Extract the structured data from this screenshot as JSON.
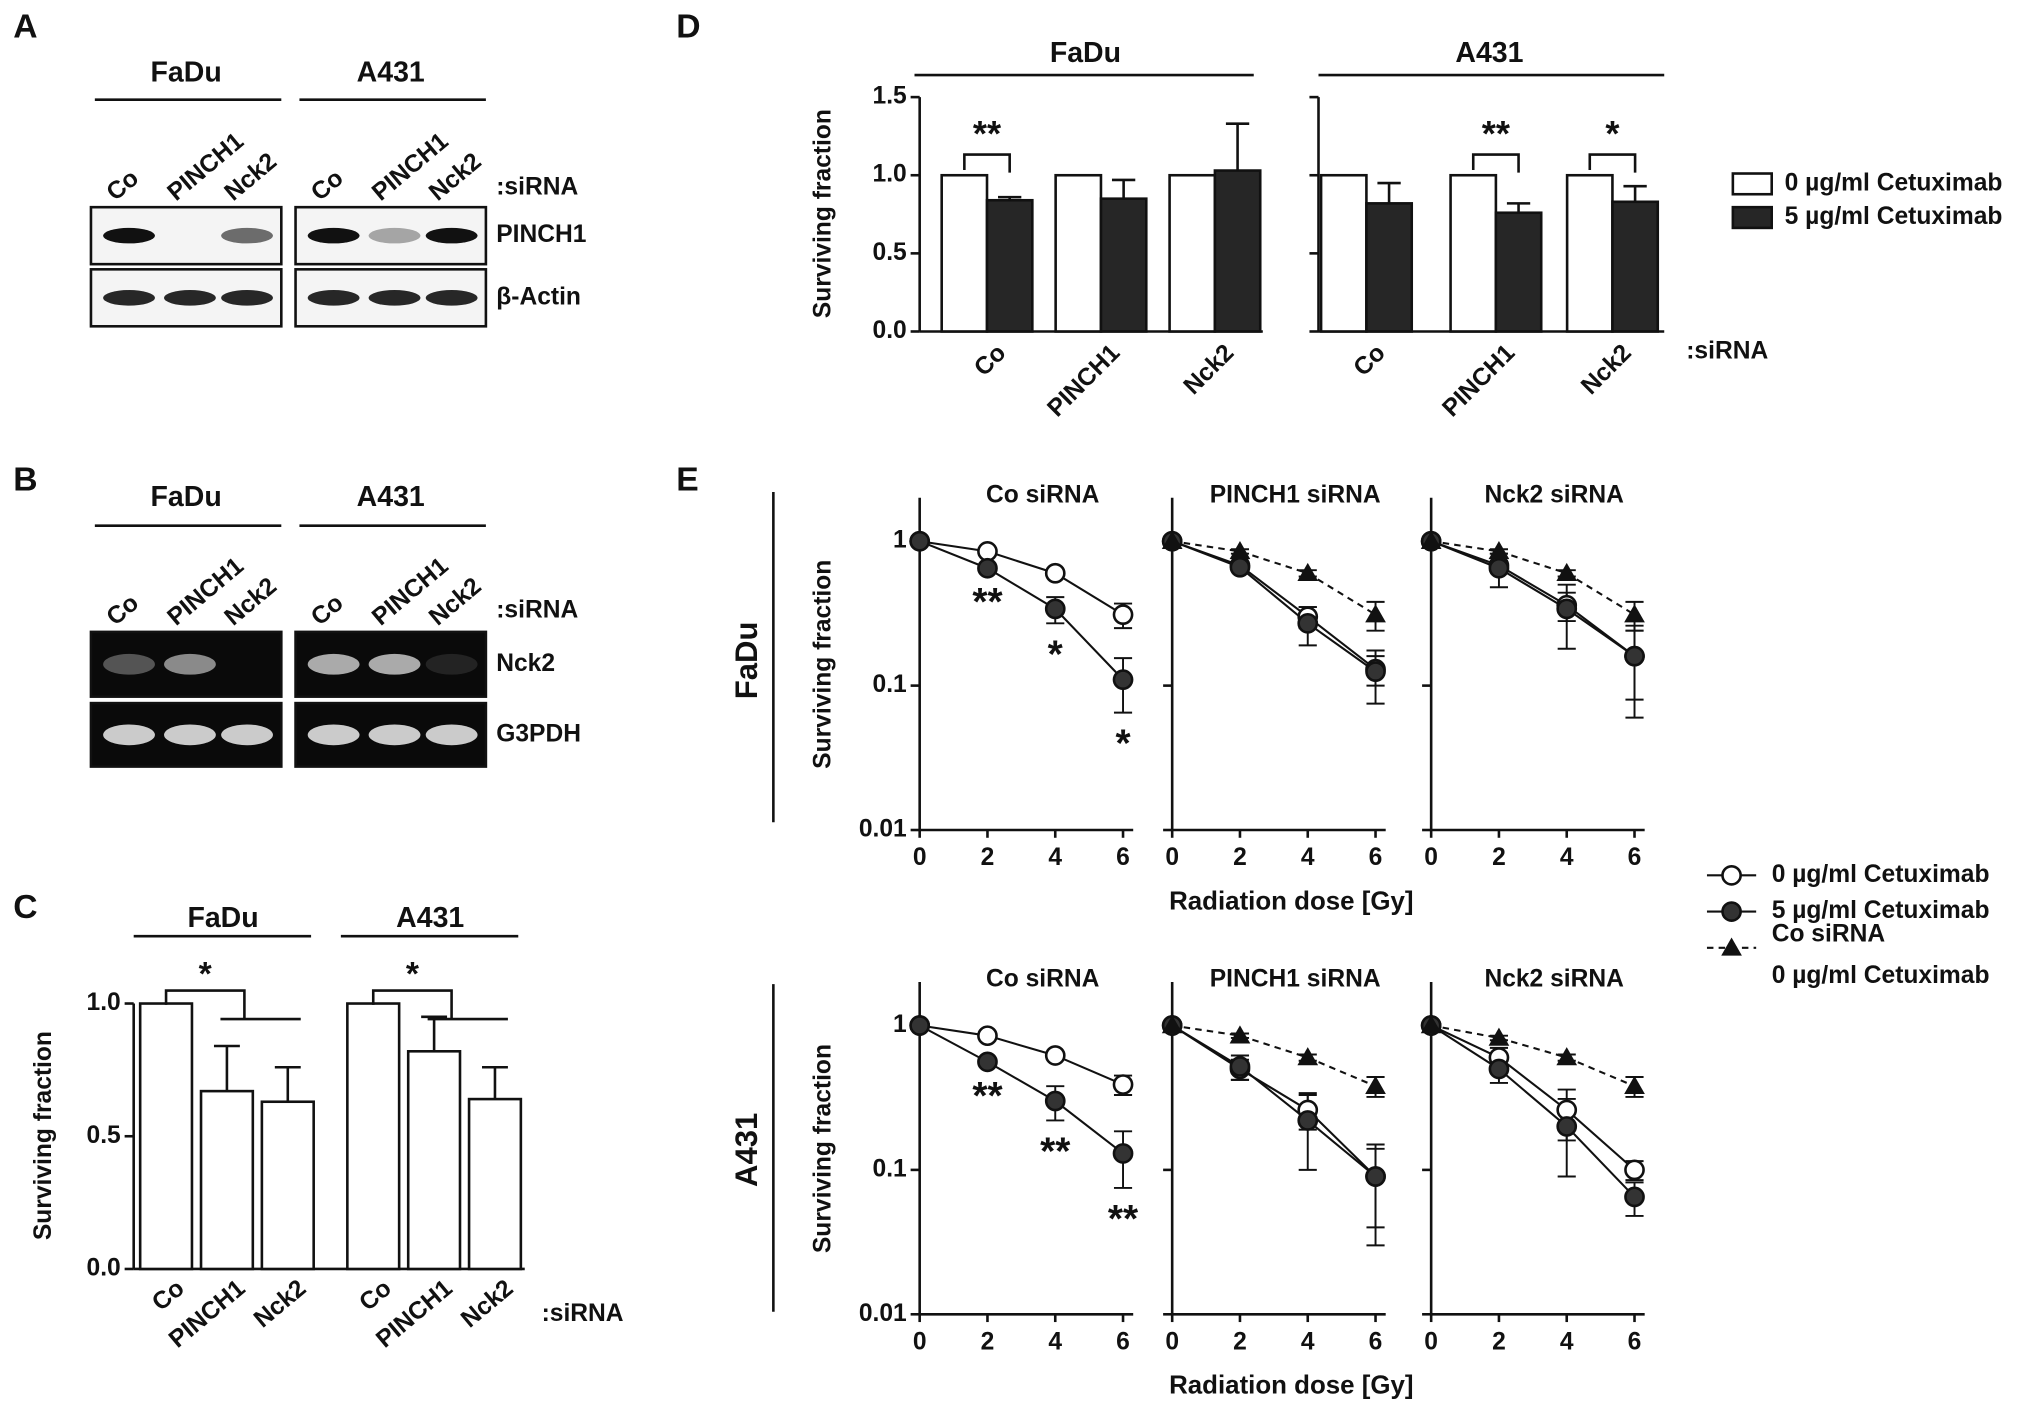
{
  "panel_labels": [
    "A",
    "B",
    "C",
    "D",
    "E"
  ],
  "blots": [
    {
      "groups": [
        "FaDu",
        "A431"
      ],
      "lanes": [
        "Co",
        "PINCH1",
        "Nck2"
      ],
      "lane_suffix": ":siRNA",
      "rows": [
        "PINCH1",
        "β-Actin"
      ]
    },
    {
      "groups": [
        "FaDu",
        "A431"
      ],
      "lanes": [
        "Co",
        "PINCH1",
        "Nck2"
      ],
      "lane_suffix": ":siRNA",
      "rows": [
        "Nck2",
        "G3PDH"
      ]
    }
  ],
  "chart_data": [
    {
      "type": "bar",
      "ylabel": "Surviving fraction",
      "groups": [
        "FaDu",
        "A431"
      ],
      "categories": [
        "Co",
        "PINCH1",
        "Nck2",
        "Co",
        "PINCH1",
        "Nck2"
      ],
      "category_suffix": ":siRNA",
      "values": [
        1,
        0.67,
        0.63,
        1,
        0.82,
        0.64
      ],
      "errors": [
        null,
        0.17,
        0.13,
        null,
        0.13,
        0.12
      ],
      "color": "#ffffff",
      "ylim": [
        0,
        1
      ],
      "yticks": [
        {
          "value": 0,
          "label": "0.0"
        },
        0.5,
        {
          "value": 1,
          "label": "1.0"
        }
      ],
      "annotations": [
        "*",
        "*"
      ]
    },
    {
      "type": "bar",
      "ylabel": "Surviving fraction",
      "groups": [
        "FaDu",
        "A431"
      ],
      "categories": [
        "Co",
        "PINCH1",
        "Nck2",
        "Co",
        "PINCH1",
        "Nck2"
      ],
      "category_suffix": ":siRNA",
      "series": [
        {
          "name": "0 µg/ml Cetuximab",
          "color": "#ffffff",
          "values": [
            1,
            1,
            1,
            1,
            1,
            1
          ]
        },
        {
          "name": "5 µg/ml Cetuximab",
          "color": "#262626",
          "values": [
            0.84,
            0.85,
            1.03,
            0.82,
            0.76,
            0.83
          ],
          "errors": [
            0.02,
            0.12,
            0.3,
            0.13,
            0.06,
            0.1
          ]
        }
      ],
      "ylim": [
        0,
        1.5
      ],
      "yticks": [
        {
          "value": 0,
          "label": "0.0"
        },
        0.5,
        {
          "value": 1,
          "label": "1.0"
        },
        1.5
      ],
      "annotations": [
        "**",
        "**",
        "*"
      ]
    },
    {
      "type": "line",
      "log_y": true,
      "xlabel": "Radiation dose [Gy]",
      "ylabel": "Surviving fraction",
      "x": [
        0,
        2,
        4,
        6
      ],
      "xlim": [
        0,
        6.3
      ],
      "xticks": [
        0,
        2,
        4,
        6
      ],
      "ylim": [
        0.01,
        2
      ],
      "yticks": [
        0.01,
        0.1,
        1
      ],
      "legend": [
        {
          "label_lines": [
            "0 µg/ml Cetuximab"
          ],
          "marker": "open-circle",
          "line": "solid"
        },
        {
          "label_lines": [
            "5 µg/ml Cetuximab"
          ],
          "marker": "filled-circle",
          "line": "solid"
        },
        {
          "label_lines": [
            "Co siRNA",
            "0 µg/ml Cetuximab"
          ],
          "marker": "triangle",
          "line": "dashed"
        }
      ],
      "rows": [
        {
          "label": "FaDu",
          "panels": [
            {
              "title": "Co siRNA",
              "annotations": [
                "**",
                "*",
                "*"
              ],
              "series": [
                {
                  "values": [
                    1,
                    0.85,
                    0.6,
                    0.31
                  ],
                  "errors": [
                    null,
                    0.03,
                    0.03,
                    0.06
                  ]
                },
                {
                  "values": [
                    1,
                    0.65,
                    0.34,
                    0.11
                  ],
                  "errors": [
                    null,
                    0.03,
                    0.07,
                    0.045
                  ]
                }
              ]
            },
            {
              "title": "PINCH1 siRNA",
              "series": [
                {
                  "values": [
                    1,
                    0.68,
                    0.3,
                    0.13
                  ],
                  "errors": [
                    null,
                    0.03,
                    0.05,
                    0.03
                  ]
                },
                {
                  "values": [
                    1,
                    0.66,
                    0.27,
                    0.125
                  ],
                  "errors": [
                    null,
                    0.03,
                    0.08,
                    0.05
                  ]
                },
                {
                  "values": [
                    1,
                    0.85,
                    0.6,
                    0.31
                  ],
                  "errors": [
                    null,
                    0.03,
                    0.03,
                    0.07
                  ]
                }
              ]
            },
            {
              "title": "Nck2 siRNA",
              "series": [
                {
                  "values": [
                    1,
                    0.68,
                    0.36,
                    0.16
                  ],
                  "errors": [
                    null,
                    0.05,
                    0.08,
                    0.08
                  ]
                },
                {
                  "values": [
                    1,
                    0.65,
                    0.34,
                    0.16
                  ],
                  "errors": [
                    null,
                    0.17,
                    0.16,
                    0.1
                  ]
                },
                {
                  "values": [
                    1,
                    0.85,
                    0.6,
                    0.31
                  ],
                  "errors": [
                    null,
                    0.03,
                    0.03,
                    0.07
                  ]
                }
              ]
            }
          ]
        },
        {
          "label": "A431",
          "panels": [
            {
              "title": "Co siRNA",
              "annotations": [
                "**",
                "**",
                "**"
              ],
              "series": [
                {
                  "values": [
                    1,
                    0.85,
                    0.62,
                    0.39
                  ],
                  "errors": [
                    null,
                    0.03,
                    0.03,
                    0.06
                  ]
                },
                {
                  "values": [
                    1,
                    0.56,
                    0.3,
                    0.13
                  ],
                  "errors": [
                    null,
                    0.03,
                    0.08,
                    0.055
                  ]
                }
              ]
            },
            {
              "title": "PINCH1 siRNA",
              "series": [
                {
                  "values": [
                    1,
                    0.5,
                    0.26,
                    0.09
                  ],
                  "errors": [
                    null,
                    0.08,
                    0.07,
                    0.05
                  ]
                },
                {
                  "values": [
                    1,
                    0.52,
                    0.22,
                    0.09
                  ],
                  "errors": [
                    null,
                    0.1,
                    0.12,
                    0.06
                  ]
                },
                {
                  "values": [
                    1,
                    0.85,
                    0.6,
                    0.38
                  ],
                  "errors": [
                    null,
                    0.03,
                    0.03,
                    0.06
                  ]
                }
              ]
            },
            {
              "title": "Nck2 siRNA",
              "series": [
                {
                  "values": [
                    1,
                    0.6,
                    0.26,
                    0.1
                  ],
                  "errors": [
                    null,
                    0.1,
                    0.1,
                    0.015
                  ]
                },
                {
                  "values": [
                    1,
                    0.5,
                    0.2,
                    0.065
                  ],
                  "errors": [
                    null,
                    0.1,
                    0.11,
                    0.017
                  ]
                },
                {
                  "values": [
                    1,
                    0.82,
                    0.6,
                    0.38
                  ],
                  "errors": [
                    null,
                    0.03,
                    0.03,
                    0.06
                  ]
                }
              ]
            }
          ]
        }
      ]
    }
  ]
}
